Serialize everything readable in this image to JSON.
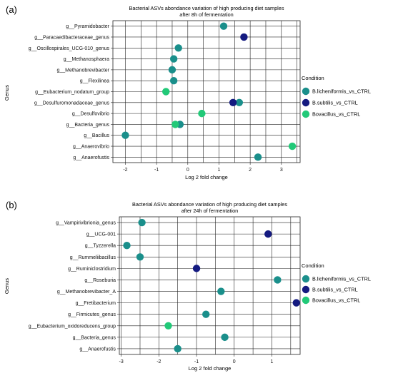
{
  "chart_data": [
    {
      "panel_label": "(a)",
      "type": "scatter",
      "title_lines": [
        "Bacterial ASVs abondance variation of high producing diet samples",
        "after 8h of fermentation"
      ],
      "xlabel": "Log 2 fold change",
      "ylabel": "Genus",
      "xlim": [
        -2.4,
        3.6
      ],
      "xticks": [
        -2,
        -1,
        0,
        1,
        2,
        3
      ],
      "categories": [
        "g__Pyramidobacter",
        "g__Paracaedibacteraceae_genus",
        "g__Oscillospirales_UCG-010_genus",
        "g__Methanosphaera",
        "g__Methanobrevibacter",
        "g__Flexilinea",
        "g__Eubacterium_nodatum_group",
        "g__Desulfuromonadaceae_genus",
        "g__Desulfovibrio",
        "g__Bacteria_genus",
        "g__Bacillus",
        "g__Anaerovibrio",
        "g__Anaerofustis"
      ],
      "series": [
        {
          "name": "B.licheniformis_vs_CTRL",
          "color": "#1a8f8b",
          "points": [
            [
              "g__Pyramidobacter",
              1.15
            ],
            [
              "g__Oscillospirales_UCG-010_genus",
              -0.3
            ],
            [
              "g__Methanosphaera",
              -0.45
            ],
            [
              "g__Methanobrevibacter",
              -0.5
            ],
            [
              "g__Flexilinea",
              -0.45
            ],
            [
              "g__Desulfuromonadaceae_genus",
              1.65
            ],
            [
              "g__Bacteria_genus",
              -0.25
            ],
            [
              "g__Bacillus",
              -2.0
            ],
            [
              "g__Anaerofustis",
              2.25
            ]
          ]
        },
        {
          "name": "B.subtilis_vs_CTRL",
          "color": "#141a80",
          "points": [
            [
              "g__Paracaedibacteraceae_genus",
              1.8
            ],
            [
              "g__Desulfuromonadaceae_genus",
              1.45
            ]
          ]
        },
        {
          "name": "Bovacillus_vs_CTRL",
          "color": "#22c978",
          "points": [
            [
              "g__Eubacterium_nodatum_group",
              -0.7
            ],
            [
              "g__Desulfovibrio",
              0.45
            ],
            [
              "g__Bacteria_genus",
              -0.4
            ],
            [
              "g__Anaerovibrio",
              3.35
            ]
          ]
        }
      ]
    },
    {
      "panel_label": "(b)",
      "type": "scatter",
      "title_lines": [
        "Bacterial ASVs abondance variation of high producing diet samples",
        "after 24h of fermentation"
      ],
      "xlabel": "Log 2 fold change",
      "ylabel": "Genus",
      "xlim": [
        -3.05,
        1.75
      ],
      "xticks": [
        -3,
        -2,
        -1,
        0,
        1
      ],
      "categories": [
        "g__Vampirivibrionia_genus",
        "g__UCG-001",
        "g__Tyzzerella",
        "g__Rummeliibacillus",
        "g__Ruminiclostridium",
        "g__Roseburia",
        "g__Methanobrevibacter_A",
        "g__Fretibacterium",
        "g__Firmicutes_genus",
        "g__Eubacterium_oxidoreducens_group",
        "g__Bacteria_genus",
        "g__Anaerofustis"
      ],
      "series": [
        {
          "name": "B.licheniformis_vs_CTRL",
          "color": "#1a8f8b",
          "points": [
            [
              "g__Vampirivibrionia_genus",
              -2.45
            ],
            [
              "g__Tyzzerella",
              -2.85
            ],
            [
              "g__Rummeliibacillus",
              -2.5
            ],
            [
              "g__Roseburia",
              1.15
            ],
            [
              "g__Methanobrevibacter_A",
              -0.35
            ],
            [
              "g__Firmicutes_genus",
              -0.75
            ],
            [
              "g__Bacteria_genus",
              -0.25
            ],
            [
              "g__Anaerofustis",
              -1.5
            ]
          ]
        },
        {
          "name": "B.subtilis_vs_CTRL",
          "color": "#141a80",
          "points": [
            [
              "g__UCG-001",
              0.9
            ],
            [
              "g__Ruminiclostridium",
              -1.0
            ],
            [
              "g__Fretibacterium",
              1.65
            ]
          ]
        },
        {
          "name": "Bovacillus_vs_CTRL",
          "color": "#22c978",
          "points": [
            [
              "g__Eubacterium_oxidoreducens_group",
              -1.75
            ]
          ]
        }
      ]
    }
  ],
  "legend": {
    "title": "Condition",
    "items": [
      {
        "label": "B.licheniformis_vs_CTRL",
        "color": "#1a8f8b"
      },
      {
        "label": "B.subtilis_vs_CTRL",
        "color": "#141a80"
      },
      {
        "label": "Bovacillus_vs_CTRL",
        "color": "#22c978"
      }
    ]
  }
}
